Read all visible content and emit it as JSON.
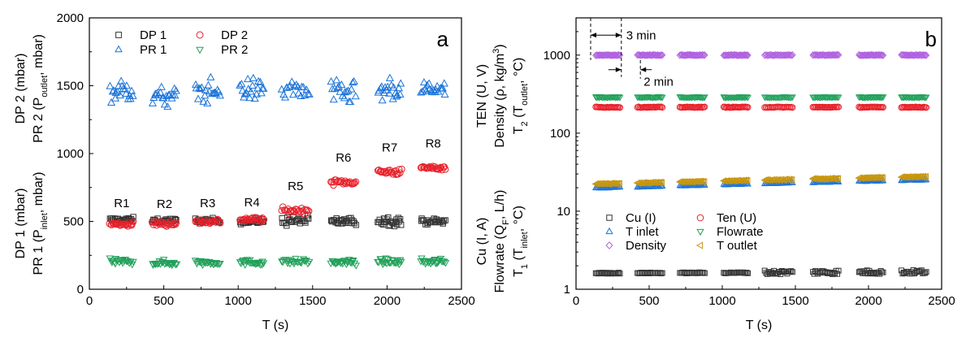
{
  "chart_data": [
    {
      "type": "scatter",
      "panel_label": "a",
      "xlabel": "T (s)",
      "ylabel_lines": [
        "DP 1 (mbar)",
        "PR 1 (P_inlet, mbar)",
        "DP 2 (mbar)",
        "PR 2 (P_outlet, mbar)"
      ],
      "xlim": [
        0,
        2500
      ],
      "ylim": [
        0,
        2000
      ],
      "xticks": [
        0,
        500,
        1000,
        1500,
        2000,
        2500
      ],
      "yticks": [
        0,
        500,
        1000,
        1500,
        2000
      ],
      "grid": false,
      "legend_position": "top-left, two columns",
      "run_windows": [
        [
          135,
          300
        ],
        [
          420,
          590
        ],
        [
          710,
          880
        ],
        [
          1010,
          1175
        ],
        [
          1290,
          1480
        ],
        [
          1620,
          1795
        ],
        [
          1935,
          2100
        ],
        [
          2225,
          2395
        ]
      ],
      "run_labels": [
        "R1",
        "R2",
        "R3",
        "R4",
        "R5",
        "R6",
        "R7",
        "R8"
      ],
      "series": [
        {
          "name": "DP 1",
          "marker": "square",
          "color": "#333333",
          "means": [
            510,
            505,
            505,
            500,
            505,
            500,
            505,
            500
          ],
          "spread": [
            20,
            18,
            18,
            18,
            35,
            30,
            35,
            20
          ]
        },
        {
          "name": "DP 2",
          "marker": "circle",
          "color": "#e8212b",
          "means": [
            480,
            485,
            500,
            515,
            580,
            790,
            865,
            895
          ],
          "spread": [
            18,
            18,
            18,
            20,
            20,
            18,
            22,
            15
          ]
        },
        {
          "name": "PR 1",
          "marker": "triangle-up",
          "color": "#1a73d9",
          "means": [
            1460,
            1410,
            1460,
            1470,
            1470,
            1440,
            1450,
            1470
          ],
          "spread": [
            80,
            80,
            90,
            80,
            90,
            85,
            85,
            80
          ]
        },
        {
          "name": "PR 2",
          "marker": "triangle-down",
          "color": "#21a05a",
          "means": [
            205,
            195,
            200,
            200,
            205,
            200,
            205,
            205
          ],
          "spread": [
            20,
            20,
            20,
            20,
            20,
            20,
            20,
            20
          ]
        }
      ]
    },
    {
      "type": "scatter",
      "panel_label": "b",
      "xlabel": "T (s)",
      "ylabel_lines": [
        "TEN (U, V)",
        "Density (ρ, kg/m³)",
        "T_2 (T_outlet, °C)",
        "Cu (I, A)",
        "Flowrate (Q_F, L/h)",
        "T_1 (T_inlet, °C)"
      ],
      "xlim": [
        0,
        2500
      ],
      "ylim": [
        1,
        3000
      ],
      "y_scale": "log",
      "xticks": [
        0,
        500,
        1000,
        1500,
        2000,
        2500
      ],
      "yticks": [
        1,
        10,
        100,
        1000
      ],
      "grid": false,
      "legend_position": "lower-left, two columns",
      "run_windows": [
        [
          135,
          300
        ],
        [
          420,
          590
        ],
        [
          710,
          880
        ],
        [
          1010,
          1175
        ],
        [
          1290,
          1480
        ],
        [
          1620,
          1795
        ],
        [
          1935,
          2100
        ],
        [
          2225,
          2395
        ]
      ],
      "annotations": [
        {
          "text": "3 min",
          "x_from": 100,
          "x_to": 310,
          "y": 1800
        },
        {
          "text": "2 min",
          "x_from": 310,
          "x_to": 440,
          "y": 700
        }
      ],
      "series": [
        {
          "name": "Cu (I)",
          "marker": "square",
          "color": "#333333",
          "start": 1.6,
          "end": 1.65
        },
        {
          "name": "Ten (U)",
          "marker": "circle",
          "color": "#e8212b",
          "start": 215,
          "end": 215
        },
        {
          "name": "T inlet",
          "marker": "triangle-up",
          "color": "#1a73d9",
          "start": 19.5,
          "end": 25.5
        },
        {
          "name": "Flowrate",
          "marker": "triangle-down",
          "color": "#21a05a",
          "start": 290,
          "end": 290
        },
        {
          "name": "Density",
          "marker": "diamond",
          "color": "#b061e0",
          "start": 1000,
          "end": 1000
        },
        {
          "name": "T outlet",
          "marker": "triangle-left",
          "color": "#c8960f",
          "start": 22,
          "end": 28
        }
      ]
    }
  ]
}
